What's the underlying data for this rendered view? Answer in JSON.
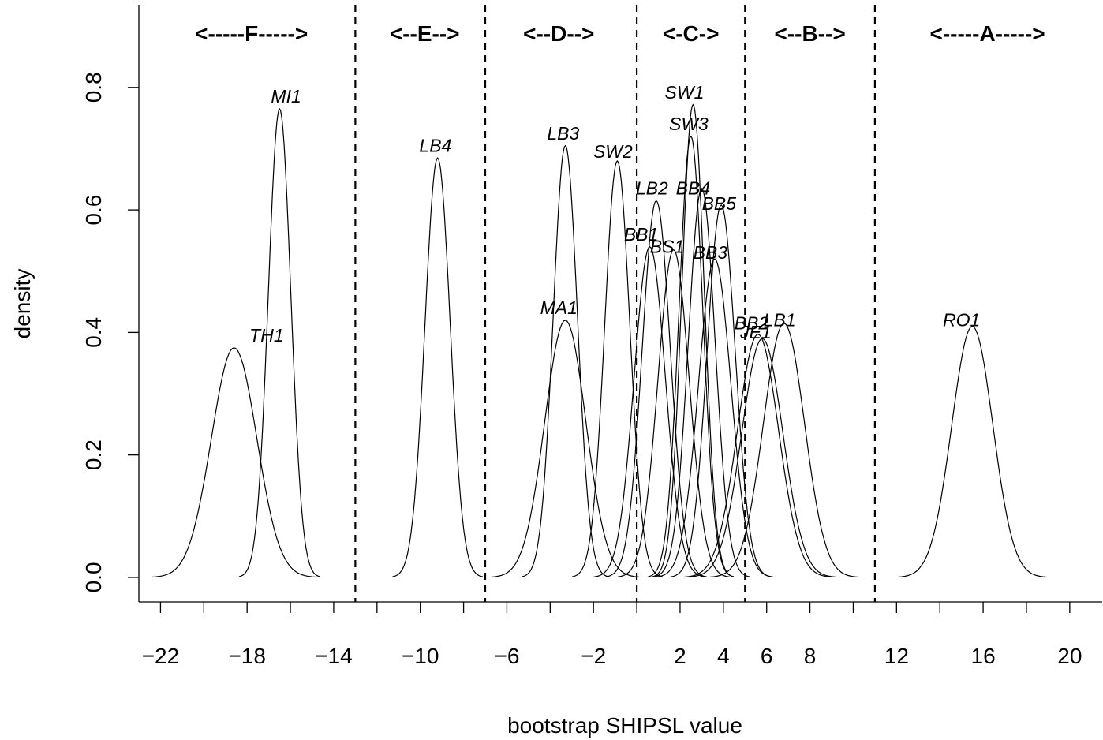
{
  "chart_data": {
    "type": "line",
    "title": "",
    "xlabel": "bootstrap SHIPSL value",
    "ylabel": "density",
    "xlim": [
      -23,
      21.5
    ],
    "ylim": [
      -0.04,
      0.935
    ],
    "x_ticks": [
      -22,
      -20,
      -18,
      -16,
      -14,
      -12,
      -10,
      -8,
      -6,
      -4,
      -2,
      0,
      2,
      4,
      6,
      8,
      10,
      12,
      14,
      16,
      18,
      20
    ],
    "x_tick_labels": [
      "-22",
      "",
      "-18",
      "",
      "-14",
      "",
      "-10",
      "",
      "-6",
      "",
      "-2",
      "",
      "2",
      "4",
      "6",
      "8",
      "",
      "12",
      "",
      "16",
      "",
      "20"
    ],
    "y_ticks": [
      0.0,
      0.2,
      0.4,
      0.6,
      0.8
    ],
    "y_tick_labels": [
      "0.0",
      "0.2",
      "0.4",
      "0.6",
      "0.8"
    ],
    "group_boundaries": [
      -13.0,
      -7.0,
      0.0,
      5.0,
      11.0
    ],
    "groups": [
      {
        "label": "<-----F----->",
        "x": -17.8
      },
      {
        "label": "<--E-->",
        "x": -9.8
      },
      {
        "label": "<--D-->",
        "x": -3.6
      },
      {
        "label": "<-C->",
        "x": 2.5
      },
      {
        "label": "<--B-->",
        "x": 8.0
      },
      {
        "label": "<-----A----->",
        "x": 16.2
      }
    ],
    "series": [
      {
        "name": "TH1",
        "mean": -18.6,
        "sd": 1.05,
        "peak": 0.375,
        "label_x": -17.1,
        "label_y": 0.385
      },
      {
        "name": "MI1",
        "mean": -16.5,
        "sd": 0.52,
        "peak": 0.765,
        "label_x": -16.2,
        "label_y": 0.775
      },
      {
        "name": "LB4",
        "mean": -9.2,
        "sd": 0.58,
        "peak": 0.685,
        "label_x": -9.3,
        "label_y": 0.695
      },
      {
        "name": "LB3",
        "mean": -3.3,
        "sd": 0.56,
        "peak": 0.705,
        "label_x": -3.4,
        "label_y": 0.715
      },
      {
        "name": "MA1",
        "mean": -3.3,
        "sd": 0.95,
        "peak": 0.42,
        "label_x": -3.6,
        "label_y": 0.43
      },
      {
        "name": "SW2",
        "mean": -0.9,
        "sd": 0.58,
        "peak": 0.68,
        "label_x": -1.1,
        "label_y": 0.685
      },
      {
        "name": "LB2",
        "mean": 0.9,
        "sd": 0.65,
        "peak": 0.615,
        "label_x": 0.7,
        "label_y": 0.625
      },
      {
        "name": "BB1",
        "mean": 0.6,
        "sd": 0.72,
        "peak": 0.54,
        "label_x": 0.2,
        "label_y": 0.55
      },
      {
        "name": "BS1",
        "mean": 1.7,
        "sd": 0.72,
        "peak": 0.535,
        "label_x": 1.4,
        "label_y": 0.53
      },
      {
        "name": "SW1",
        "mean": 2.6,
        "sd": 0.52,
        "peak": 0.772,
        "label_x": 2.2,
        "label_y": 0.782
      },
      {
        "name": "SW3",
        "mean": 2.5,
        "sd": 0.55,
        "peak": 0.72,
        "label_x": 2.4,
        "label_y": 0.73
      },
      {
        "name": "BB4",
        "mean": 3.0,
        "sd": 0.62,
        "peak": 0.635,
        "label_x": 2.6,
        "label_y": 0.625
      },
      {
        "name": "BB5",
        "mean": 3.9,
        "sd": 0.65,
        "peak": 0.608,
        "label_x": 3.8,
        "label_y": 0.6
      },
      {
        "name": "BB3",
        "mean": 3.6,
        "sd": 0.75,
        "peak": 0.52,
        "label_x": 3.4,
        "label_y": 0.52
      },
      {
        "name": "BB2",
        "mean": 5.6,
        "sd": 0.95,
        "peak": 0.397,
        "label_x": 5.3,
        "label_y": 0.405
      },
      {
        "name": "JE1",
        "mean": 5.8,
        "sd": 0.95,
        "peak": 0.39,
        "label_x": 5.5,
        "label_y": 0.39
      },
      {
        "name": "LB1",
        "mean": 6.8,
        "sd": 0.95,
        "peak": 0.415,
        "label_x": 6.6,
        "label_y": 0.41
      },
      {
        "name": "RO1",
        "mean": 15.5,
        "sd": 0.95,
        "peak": 0.41,
        "label_x": 15.0,
        "label_y": 0.41
      }
    ]
  }
}
